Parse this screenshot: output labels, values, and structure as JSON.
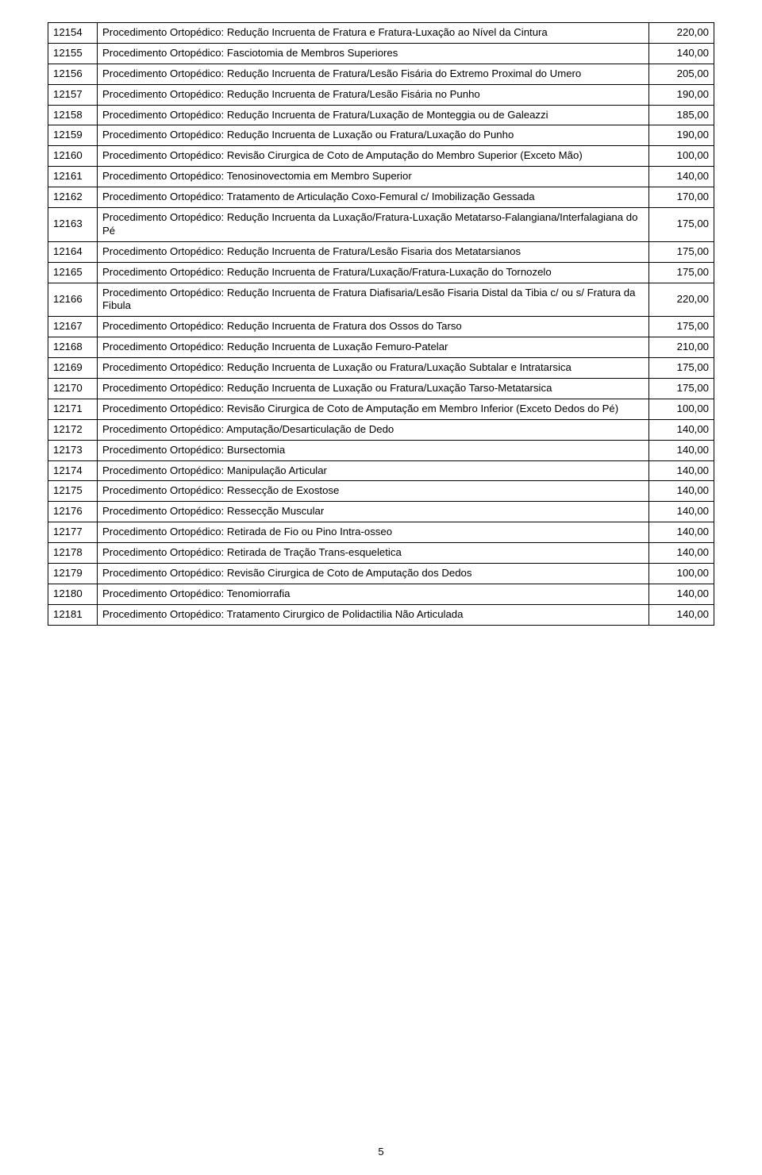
{
  "page_number": "5",
  "table": {
    "rows": [
      {
        "code": "12154",
        "desc": "Procedimento Ortopédico: Redução Incruenta de Fratura e Fratura-Luxação ao Nível da Cintura",
        "value": "220,00"
      },
      {
        "code": "12155",
        "desc": "Procedimento Ortopédico: Fasciotomia de Membros Superiores",
        "value": "140,00"
      },
      {
        "code": "12156",
        "desc": "Procedimento Ortopédico: Redução Incruenta de Fratura/Lesão Fisária do Extremo Proximal do Umero",
        "value": "205,00"
      },
      {
        "code": "12157",
        "desc": "Procedimento Ortopédico: Redução Incruenta de Fratura/Lesão Fisária no Punho",
        "value": "190,00"
      },
      {
        "code": "12158",
        "desc": "Procedimento Ortopédico: Redução Incruenta de Fratura/Luxação de Monteggia ou de Galeazzi",
        "value": "185,00"
      },
      {
        "code": "12159",
        "desc": "Procedimento Ortopédico: Redução Incruenta de Luxação ou Fratura/Luxação do Punho",
        "value": "190,00"
      },
      {
        "code": "12160",
        "desc": "Procedimento Ortopédico: Revisão Cirurgica de Coto de Amputação do Membro Superior (Exceto Mão)",
        "value": "100,00"
      },
      {
        "code": "12161",
        "desc": "Procedimento Ortopédico: Tenosinovectomia em Membro Superior",
        "value": "140,00"
      },
      {
        "code": "12162",
        "desc": "Procedimento Ortopédico: Tratamento de Articulação Coxo-Femural c/ Imobilização Gessada",
        "value": "170,00"
      },
      {
        "code": "12163",
        "desc": "Procedimento Ortopédico: Redução Incruenta da Luxação/Fratura-Luxação Metatarso-Falangiana/Interfalagiana do Pé",
        "value": "175,00"
      },
      {
        "code": "12164",
        "desc": "Procedimento Ortopédico: Redução Incruenta de Fratura/Lesão Fisaria dos Metatarsianos",
        "value": "175,00"
      },
      {
        "code": "12165",
        "desc": "Procedimento Ortopédico: Redução Incruenta de Fratura/Luxação/Fratura-Luxação do Tornozelo",
        "value": "175,00"
      },
      {
        "code": "12166",
        "desc": "Procedimento Ortopédico: Redução Incruenta de Fratura Diafisaria/Lesão Fisaria Distal da Tibia c/ ou s/ Fratura da Fibula",
        "value": "220,00"
      },
      {
        "code": "12167",
        "desc": "Procedimento Ortopédico: Redução Incruenta de Fratura dos Ossos do Tarso",
        "value": "175,00"
      },
      {
        "code": "12168",
        "desc": "Procedimento Ortopédico: Redução Incruenta de Luxação Femuro-Patelar",
        "value": "210,00"
      },
      {
        "code": "12169",
        "desc": "Procedimento Ortopédico: Redução Incruenta de Luxação ou Fratura/Luxação Subtalar e Intratarsica",
        "value": "175,00"
      },
      {
        "code": "12170",
        "desc": "Procedimento Ortopédico: Redução Incruenta de Luxação ou Fratura/Luxação Tarso-Metatarsica",
        "value": "175,00"
      },
      {
        "code": "12171",
        "desc": "Procedimento Ortopédico: Revisão Cirurgica de Coto de Amputação em Membro Inferior (Exceto Dedos do Pé)",
        "value": "100,00"
      },
      {
        "code": "12172",
        "desc": "Procedimento Ortopédico: Amputação/Desarticulação de Dedo",
        "value": "140,00"
      },
      {
        "code": "12173",
        "desc": "Procedimento Ortopédico: Bursectomia",
        "value": "140,00"
      },
      {
        "code": "12174",
        "desc": "Procedimento Ortopédico: Manipulação Articular",
        "value": "140,00"
      },
      {
        "code": "12175",
        "desc": "Procedimento Ortopédico: Ressecção de Exostose",
        "value": "140,00"
      },
      {
        "code": "12176",
        "desc": "Procedimento Ortopédico: Ressecção Muscular",
        "value": "140,00"
      },
      {
        "code": "12177",
        "desc": "Procedimento Ortopédico: Retirada de Fio ou Pino Intra-osseo",
        "value": "140,00"
      },
      {
        "code": "12178",
        "desc": "Procedimento Ortopédico: Retirada de Tração Trans-esqueletica",
        "value": "140,00"
      },
      {
        "code": "12179",
        "desc": "Procedimento Ortopédico: Revisão Cirurgica de Coto de Amputação dos Dedos",
        "value": "100,00"
      },
      {
        "code": "12180",
        "desc": "Procedimento Ortopédico: Tenomiorrafia",
        "value": "140,00"
      },
      {
        "code": "12181",
        "desc": "Procedimento Ortopédico: Tratamento Cirurgico de Polidactilia Não Articulada",
        "value": "140,00"
      }
    ]
  }
}
